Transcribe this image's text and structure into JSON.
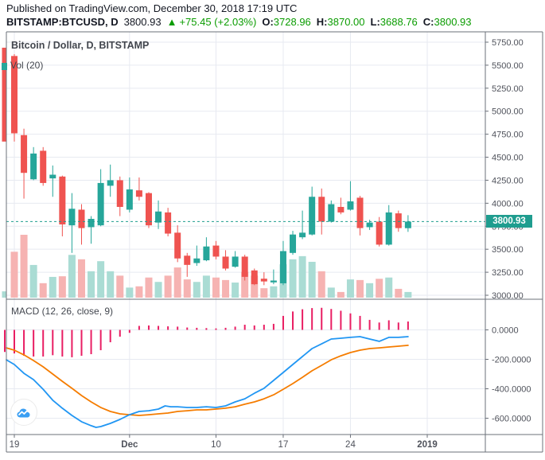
{
  "header": {
    "published_line": "Published on TradingView.com, December 30, 2018 17:19 UTC",
    "symbol": "BITSTAMP:BTCUSD, D",
    "last_price": "3800.93",
    "change_icon": "▲",
    "change_text": "+75.45 (+2.03%)",
    "ohlc": {
      "o_label": "O:",
      "o": "3728.96",
      "h_label": "H:",
      "h": "3870.00",
      "l_label": "L:",
      "l": "3688.76",
      "c_label": "C:",
      "c": "3800.93"
    }
  },
  "colors": {
    "up": "#26a69a",
    "down": "#ef5350",
    "vol_up": "#aadcd4",
    "vol_down": "#f6b3b2",
    "accent": "#1f9d8f",
    "hist": "#e91e63",
    "macd": "#2196f3",
    "signal": "#f57c00",
    "grid": "#e7eaf1",
    "frame": "#6b7079",
    "axis_text": "#4f525b",
    "text_green": "#0a9c00"
  },
  "chart_data": [
    {
      "type": "candlestick",
      "title": "Bitcoin / Dollar, D, BITSTAMP",
      "overlay": "Vol (20)",
      "last_price": 3800.93,
      "last_price_label": "3800.93",
      "ylim": [
        2957,
        5862
      ],
      "y_ticks": [
        {
          "value": 5750,
          "label": "5750.00"
        },
        {
          "value": 5500,
          "label": "5500.00"
        },
        {
          "value": 5250,
          "label": "5250.00"
        },
        {
          "value": 5000,
          "label": "5000.00"
        },
        {
          "value": 4750,
          "label": "4750.00"
        },
        {
          "value": 4500,
          "label": "4500.00"
        },
        {
          "value": 4250,
          "label": "4250.00"
        },
        {
          "value": 4000,
          "label": "4000.00"
        },
        {
          "value": 3750,
          "label": "3750.00"
        },
        {
          "value": 3500,
          "label": "3500.00"
        },
        {
          "value": 3250,
          "label": "3250.00"
        },
        {
          "value": 3000,
          "label": "3000.00"
        }
      ],
      "time_ticks": [
        {
          "i": 0,
          "label": "19",
          "bold": false
        },
        {
          "i": 12,
          "label": "Dec",
          "bold": true
        },
        {
          "i": 21,
          "label": "10",
          "bold": false
        },
        {
          "i": 28,
          "label": "17",
          "bold": false
        },
        {
          "i": 35,
          "label": "24",
          "bold": false
        },
        {
          "i": 43,
          "label": "2019",
          "bold": true
        }
      ],
      "candles": [
        [
          5600,
          5620,
          4670,
          4760
        ],
        [
          4740,
          4810,
          4050,
          4330
        ],
        [
          4260,
          4610,
          4250,
          4540
        ],
        [
          4570,
          4610,
          4190,
          4220
        ],
        [
          4270,
          4410,
          4070,
          4310
        ],
        [
          4290,
          4300,
          3640,
          3770
        ],
        [
          3760,
          4110,
          3460,
          3940
        ],
        [
          3930,
          3990,
          3550,
          3730
        ],
        [
          3740,
          3860,
          3560,
          3830
        ],
        [
          3760,
          4370,
          3750,
          4220
        ],
        [
          4190,
          4420,
          4070,
          4250
        ],
        [
          4250,
          4290,
          3860,
          3960
        ],
        [
          3930,
          4280,
          3900,
          4150
        ],
        [
          4140,
          4280,
          4030,
          4070
        ],
        [
          4110,
          4120,
          3730,
          3760
        ],
        [
          3790,
          4030,
          3720,
          3910
        ],
        [
          3900,
          3950,
          3640,
          3670
        ],
        [
          3680,
          3760,
          3360,
          3400
        ],
        [
          3430,
          3460,
          3200,
          3330
        ],
        [
          3350,
          3540,
          3320,
          3400
        ],
        [
          3380,
          3630,
          3370,
          3530
        ],
        [
          3540,
          3590,
          3390,
          3420
        ],
        [
          3420,
          3490,
          3270,
          3290
        ],
        [
          3310,
          3480,
          3300,
          3420
        ],
        [
          3420,
          3440,
          3160,
          3200
        ],
        [
          3270,
          3290,
          3110,
          3120
        ],
        [
          3180,
          3250,
          3110,
          3150
        ],
        [
          3140,
          3280,
          3120,
          3160
        ],
        [
          3130,
          3590,
          3110,
          3480
        ],
        [
          3460,
          3700,
          3440,
          3660
        ],
        [
          3630,
          3920,
          3610,
          3680
        ],
        [
          3660,
          4180,
          3650,
          4070
        ],
        [
          4070,
          4160,
          3660,
          3800
        ],
        [
          3800,
          4030,
          3790,
          3990
        ],
        [
          3960,
          4060,
          3880,
          3900
        ],
        [
          3930,
          4240,
          3920,
          4020
        ],
        [
          4060,
          4080,
          3650,
          3730
        ],
        [
          3740,
          3820,
          3710,
          3790
        ],
        [
          3800,
          3850,
          3530,
          3550
        ],
        [
          3550,
          3980,
          3540,
          3900
        ],
        [
          3890,
          3920,
          3690,
          3730
        ],
        [
          3728.96,
          3870,
          3688.76,
          3800.93
        ]
      ],
      "volume_unit": "relative-0-100",
      "volume_rel": [
        73,
        100,
        52,
        23,
        33,
        34,
        68,
        61,
        42,
        58,
        42,
        35,
        16,
        18,
        32,
        25,
        35,
        48,
        29,
        25,
        35,
        32,
        28,
        24,
        41,
        35,
        15,
        18,
        53,
        61,
        66,
        57,
        42,
        16,
        9,
        29,
        28,
        23,
        30,
        32,
        14,
        9
      ],
      "clipped_left": {
        "candle_body": [
          5690,
          4670
        ],
        "volume_rel": 10
      }
    },
    {
      "type": "macd",
      "title": "MACD (12, 26, close, 9)",
      "y_ticks": [
        {
          "value": 0,
          "label": "0.0000"
        },
        {
          "value": -200,
          "label": "-200.0000"
        },
        {
          "value": -400,
          "label": "-400.0000"
        },
        {
          "value": -600,
          "label": "-600.0000"
        }
      ],
      "histogram": [
        -160,
        -176,
        -181,
        -181,
        -172,
        -181,
        -186,
        -176,
        -165,
        -138,
        -84,
        -46,
        -20,
        27,
        30,
        27,
        24,
        22,
        16,
        14,
        12,
        10,
        14,
        22,
        35,
        30,
        35,
        41,
        95,
        125,
        140,
        148,
        150,
        142,
        130,
        112,
        95,
        68,
        50,
        65,
        50,
        57
      ],
      "clipped_hist": -150,
      "macd_line": [
        [
          -0.83,
          -203
        ],
        [
          0,
          -235
        ],
        [
          1,
          -295
        ],
        [
          2,
          -338
        ],
        [
          3,
          -403
        ],
        [
          4,
          -478
        ],
        [
          5,
          -532
        ],
        [
          6,
          -581
        ],
        [
          7,
          -624
        ],
        [
          8,
          -651
        ],
        [
          8.5,
          -662
        ],
        [
          9,
          -657
        ],
        [
          10,
          -635
        ],
        [
          11,
          -608
        ],
        [
          12,
          -576
        ],
        [
          13,
          -554
        ],
        [
          14,
          -549
        ],
        [
          15,
          -538
        ],
        [
          15.7,
          -516
        ],
        [
          16.3,
          -522
        ],
        [
          17,
          -522
        ],
        [
          18,
          -527
        ],
        [
          19,
          -527
        ],
        [
          20,
          -522
        ],
        [
          21,
          -527
        ],
        [
          22,
          -516
        ],
        [
          23,
          -489
        ],
        [
          24,
          -468
        ],
        [
          25,
          -430
        ],
        [
          26,
          -397
        ],
        [
          27,
          -343
        ],
        [
          28,
          -289
        ],
        [
          29,
          -235
        ],
        [
          30,
          -181
        ],
        [
          31,
          -127
        ],
        [
          32,
          -95
        ],
        [
          33,
          -62
        ],
        [
          34,
          -57
        ],
        [
          35,
          -51
        ],
        [
          36,
          -46
        ],
        [
          37,
          -62
        ],
        [
          38,
          -78
        ],
        [
          39,
          -51
        ],
        [
          40,
          -51
        ],
        [
          41,
          -46
        ]
      ],
      "signal_line": [
        [
          -0.83,
          -122
        ],
        [
          0,
          -138
        ],
        [
          1,
          -170
        ],
        [
          2,
          -208
        ],
        [
          3,
          -251
        ],
        [
          4,
          -300
        ],
        [
          5,
          -349
        ],
        [
          6,
          -397
        ],
        [
          7,
          -446
        ],
        [
          8,
          -489
        ],
        [
          9,
          -527
        ],
        [
          10,
          -554
        ],
        [
          11,
          -570
        ],
        [
          12,
          -576
        ],
        [
          13,
          -581
        ],
        [
          14,
          -576
        ],
        [
          15,
          -570
        ],
        [
          16,
          -565
        ],
        [
          17,
          -554
        ],
        [
          18,
          -549
        ],
        [
          19,
          -543
        ],
        [
          20,
          -543
        ],
        [
          21,
          -538
        ],
        [
          22,
          -532
        ],
        [
          23,
          -522
        ],
        [
          24,
          -505
        ],
        [
          25,
          -489
        ],
        [
          26,
          -468
        ],
        [
          27,
          -441
        ],
        [
          28,
          -403
        ],
        [
          29,
          -365
        ],
        [
          30,
          -322
        ],
        [
          31,
          -278
        ],
        [
          32,
          -241
        ],
        [
          33,
          -203
        ],
        [
          34,
          -176
        ],
        [
          35,
          -154
        ],
        [
          36,
          -138
        ],
        [
          37,
          -127
        ],
        [
          38,
          -122
        ],
        [
          39,
          -116
        ],
        [
          40,
          -111
        ],
        [
          41,
          -105
        ]
      ]
    }
  ]
}
